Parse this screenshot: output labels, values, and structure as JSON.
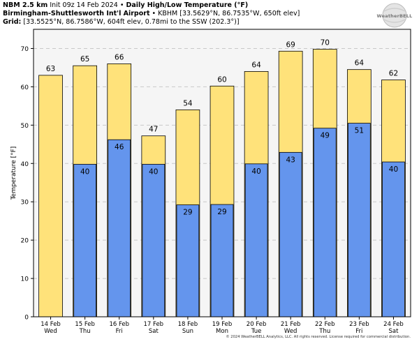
{
  "header": {
    "line1_model": "NBM 2.5 km",
    "line1_init": "Init 09z 14 Feb 2024",
    "line1_title": "Daily High/Low Temperature (°F)",
    "line2_station": "Birmingham-Shuttlesworth Int'l Airport",
    "line2_info": "KBHM [33.5629°N, 86.7535°W, 650ft elev]",
    "line3_label": "Grid",
    "line3_info": "[33.5525°N, 86.7586°W, 604ft elev, 0.78mi to the SSW (202.3°)]",
    "sep": "•"
  },
  "logo": {
    "text": "WeatherBELL"
  },
  "footer": {
    "text": "© 2024 WeatherBELL Analytics, LLC. All rights reserved. License required for commercial distribution."
  },
  "colors": {
    "high": "#ffe27a",
    "low": "#6495ed",
    "plot_bg": "#f5f5f5",
    "grid": "#c8c8c8"
  },
  "chart_data": {
    "type": "bar",
    "title": "Daily High/Low Temperature (°F)",
    "ylabel": "Temperature [°F]",
    "xlabel": "",
    "ylim": [
      0,
      75
    ],
    "yticks": [
      0,
      10,
      20,
      30,
      40,
      50,
      60,
      70
    ],
    "grid": true,
    "categories": [
      "14 Feb",
      "15 Feb",
      "16 Feb",
      "17 Feb",
      "18 Feb",
      "19 Feb",
      "20 Feb",
      "21 Feb",
      "22 Feb",
      "23 Feb",
      "24 Feb"
    ],
    "days": [
      "Wed",
      "Thu",
      "Fri",
      "Sat",
      "Sun",
      "Mon",
      "Tue",
      "Wed",
      "Thu",
      "Fri",
      "Sat"
    ],
    "series": [
      {
        "name": "High",
        "values": [
          63,
          65.5,
          66,
          47.2,
          54,
          60.2,
          64,
          69.3,
          69.8,
          64.5,
          61.8
        ],
        "labels": [
          "63",
          "65",
          "66",
          "47",
          "54",
          "60",
          "64",
          "69",
          "70",
          "64",
          "62"
        ]
      },
      {
        "name": "Low",
        "values": [
          null,
          39.8,
          46.2,
          39.8,
          29.2,
          29.3,
          39.9,
          42.9,
          49.2,
          50.5,
          40.4
        ],
        "labels": [
          "",
          "40",
          "46",
          "40",
          "29",
          "29",
          "40",
          "43",
          "49",
          "51",
          "40"
        ]
      }
    ]
  }
}
